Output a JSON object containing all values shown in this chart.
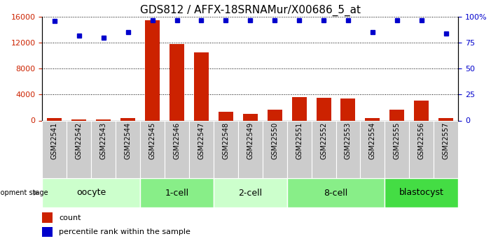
{
  "title": "GDS812 / AFFX-18SRNAMur/X00686_5_at",
  "samples": [
    "GSM22541",
    "GSM22542",
    "GSM22543",
    "GSM22544",
    "GSM22545",
    "GSM22546",
    "GSM22547",
    "GSM22548",
    "GSM22549",
    "GSM22550",
    "GSM22551",
    "GSM22552",
    "GSM22553",
    "GSM22554",
    "GSM22555",
    "GSM22556",
    "GSM22557"
  ],
  "counts": [
    400,
    180,
    130,
    330,
    15500,
    11800,
    10500,
    1300,
    1050,
    1650,
    3600,
    3480,
    3350,
    380,
    1650,
    3100,
    380
  ],
  "percentile": [
    96,
    82,
    80,
    85,
    97,
    97,
    97,
    97,
    97,
    97,
    97,
    97,
    97,
    85,
    97,
    97,
    84
  ],
  "ylim_left": [
    0,
    16000
  ],
  "ylim_right": [
    0,
    100
  ],
  "yticks_left": [
    0,
    4000,
    8000,
    12000,
    16000
  ],
  "yticks_right": [
    0,
    25,
    50,
    75,
    100
  ],
  "bar_color": "#cc2200",
  "dot_color": "#0000cc",
  "groups": [
    {
      "label": "oocyte",
      "start": 0,
      "end": 4,
      "color": "#ccffcc"
    },
    {
      "label": "1-cell",
      "start": 4,
      "end": 7,
      "color": "#88ee88"
    },
    {
      "label": "2-cell",
      "start": 7,
      "end": 10,
      "color": "#ccffcc"
    },
    {
      "label": "8-cell",
      "start": 10,
      "end": 14,
      "color": "#88ee88"
    },
    {
      "label": "blastocyst",
      "start": 14,
      "end": 17,
      "color": "#44dd44"
    }
  ],
  "dev_stage_label": "development stage",
  "legend_count_label": "count",
  "legend_pct_label": "percentile rank within the sample",
  "title_fontsize": 11,
  "tick_fontsize": 7,
  "group_label_fontsize": 9,
  "sample_bg_color": "#cccccc",
  "group_border_color": "white"
}
